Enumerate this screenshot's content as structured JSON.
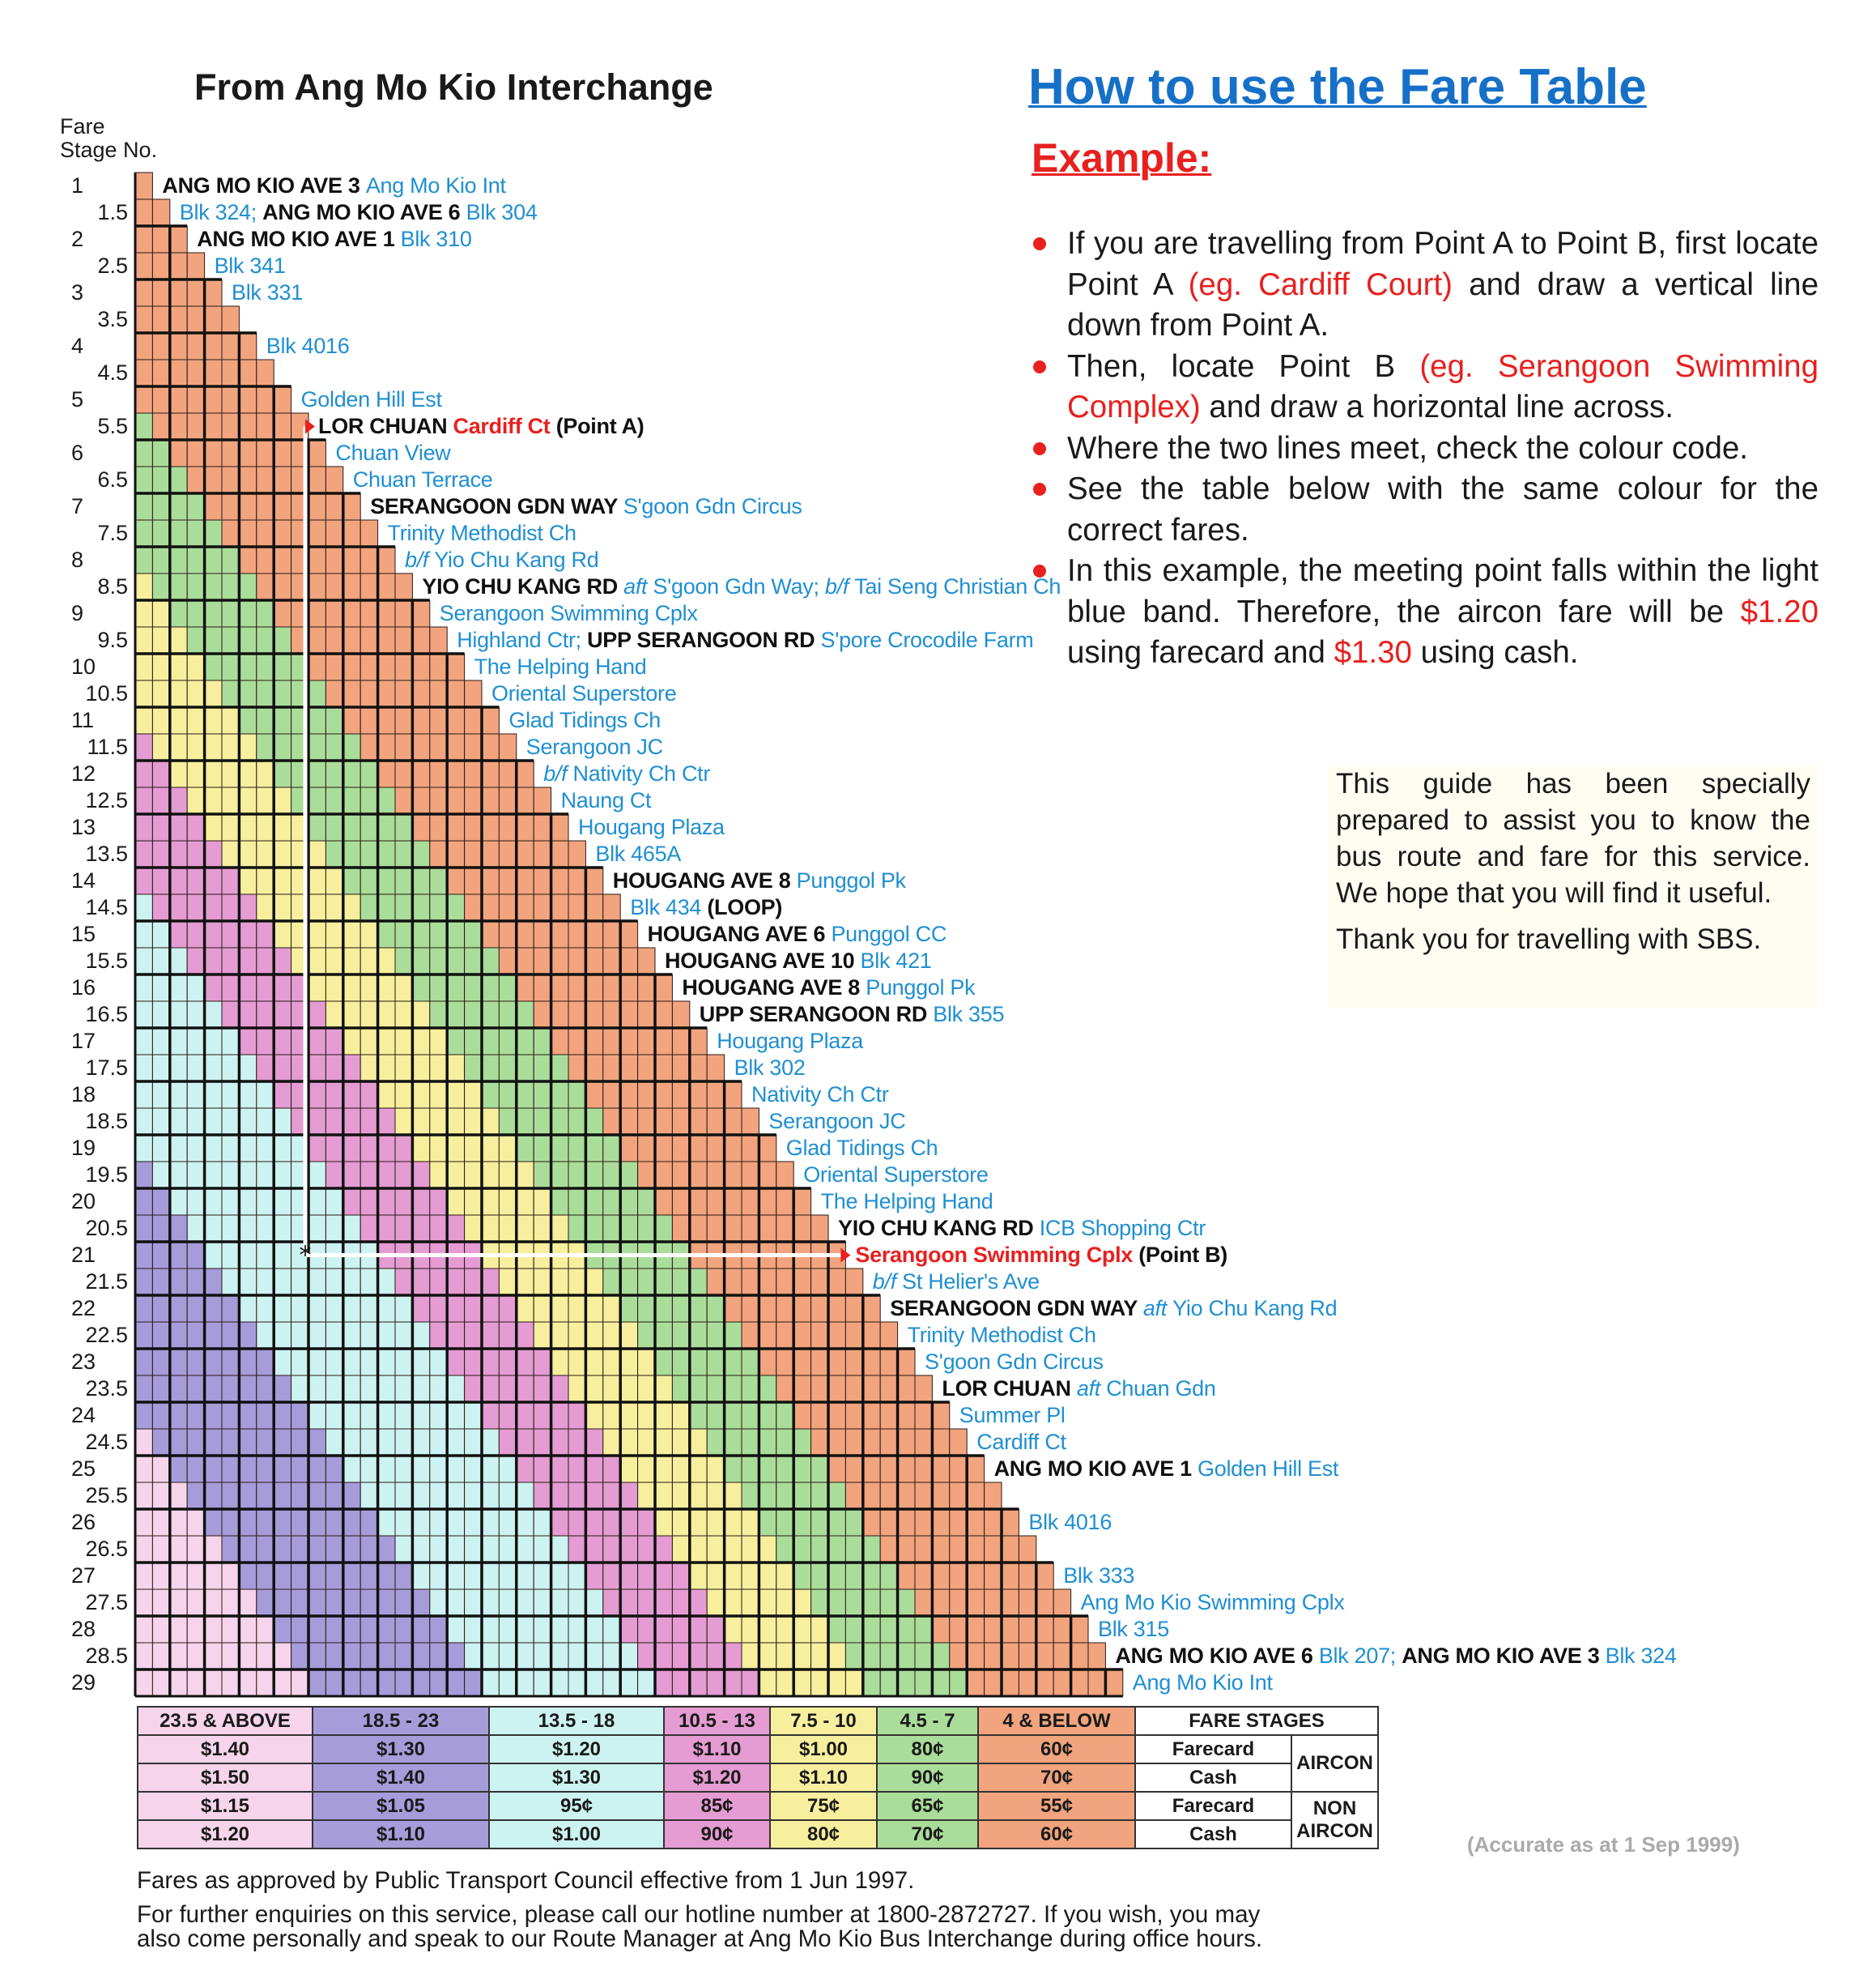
{
  "left_title": "From Ang Mo Kio Interchange",
  "stage_header": [
    "Fare",
    "Stage No."
  ],
  "colors": {
    "cyan_text": "#1f8fd2",
    "red_text": "#e8201e",
    "title_blue": "#1670c8"
  },
  "stops": [
    {
      "stage": "1",
      "parts": [
        [
          "b",
          "ANG MO KIO AVE 3 "
        ],
        [
          "c",
          "Ang Mo Kio Int"
        ]
      ]
    },
    {
      "stage": "1.5",
      "parts": [
        [
          "c",
          "Blk 324;  "
        ],
        [
          "b",
          "ANG MO KIO AVE 6 "
        ],
        [
          "c",
          "Blk 304"
        ]
      ]
    },
    {
      "stage": "2",
      "parts": [
        [
          "b",
          "ANG MO KIO AVE 1 "
        ],
        [
          "c",
          "Blk 310"
        ]
      ]
    },
    {
      "stage": "2.5",
      "parts": [
        [
          "c",
          "Blk 341"
        ]
      ]
    },
    {
      "stage": "3",
      "parts": [
        [
          "c",
          "Blk 331"
        ]
      ]
    },
    {
      "stage": "3.5",
      "parts": []
    },
    {
      "stage": "4",
      "parts": [
        [
          "c",
          "Blk 4016"
        ]
      ]
    },
    {
      "stage": "4.5",
      "parts": []
    },
    {
      "stage": "5",
      "parts": [
        [
          "c",
          "Golden Hill Est"
        ]
      ]
    },
    {
      "stage": "5.5",
      "parts": [
        [
          "b",
          "LOR CHUAN "
        ],
        [
          "r",
          "Cardiff Ct"
        ],
        [
          "b",
          " (Point A)"
        ]
      ]
    },
    {
      "stage": "6",
      "parts": [
        [
          "c",
          "Chuan View"
        ]
      ]
    },
    {
      "stage": "6.5",
      "parts": [
        [
          "c",
          "Chuan Terrace"
        ]
      ]
    },
    {
      "stage": "7",
      "parts": [
        [
          "b",
          "SERANGOON GDN WAY "
        ],
        [
          "c",
          "S'goon Gdn Circus"
        ]
      ]
    },
    {
      "stage": "7.5",
      "parts": [
        [
          "c",
          "Trinity Methodist Ch"
        ]
      ]
    },
    {
      "stage": "8",
      "parts": [
        [
          "i",
          "b/f "
        ],
        [
          "c",
          "Yio Chu Kang Rd"
        ]
      ]
    },
    {
      "stage": "8.5",
      "parts": [
        [
          "b",
          "YIO CHU KANG RD "
        ],
        [
          "i",
          "aft "
        ],
        [
          "c",
          "S'goon Gdn Way;  "
        ],
        [
          "i",
          "b/f "
        ],
        [
          "c",
          "Tai Seng Christian Ch"
        ]
      ]
    },
    {
      "stage": "9",
      "parts": [
        [
          "c",
          "Serangoon Swimming Cplx"
        ]
      ]
    },
    {
      "stage": "9.5",
      "parts": [
        [
          "c",
          "Highland Ctr;  "
        ],
        [
          "b",
          "UPP SERANGOON RD "
        ],
        [
          "c",
          "S'pore Crocodile Farm"
        ]
      ]
    },
    {
      "stage": "10",
      "parts": [
        [
          "c",
          "The Helping Hand"
        ]
      ]
    },
    {
      "stage": "10.5",
      "parts": [
        [
          "c",
          "Oriental Superstore"
        ]
      ]
    },
    {
      "stage": "11",
      "parts": [
        [
          "c",
          "Glad Tidings Ch"
        ]
      ]
    },
    {
      "stage": "11.5",
      "parts": [
        [
          "c",
          "Serangoon JC"
        ]
      ]
    },
    {
      "stage": "12",
      "parts": [
        [
          "i",
          "b/f "
        ],
        [
          "c",
          "Nativity Ch Ctr"
        ]
      ]
    },
    {
      "stage": "12.5",
      "parts": [
        [
          "c",
          "Naung Ct"
        ]
      ]
    },
    {
      "stage": "13",
      "parts": [
        [
          "c",
          "Hougang Plaza"
        ]
      ]
    },
    {
      "stage": "13.5",
      "parts": [
        [
          "c",
          "Blk 465A"
        ]
      ]
    },
    {
      "stage": "14",
      "parts": [
        [
          "b",
          "HOUGANG AVE 8 "
        ],
        [
          "c",
          "Punggol Pk"
        ]
      ]
    },
    {
      "stage": "14.5",
      "parts": [
        [
          "c",
          "Blk 434  "
        ],
        [
          "b",
          "(LOOP)"
        ]
      ]
    },
    {
      "stage": "15",
      "parts": [
        [
          "b",
          "HOUGANG AVE 6 "
        ],
        [
          "c",
          "Punggol CC"
        ]
      ]
    },
    {
      "stage": "15.5",
      "parts": [
        [
          "b",
          "HOUGANG AVE 10 "
        ],
        [
          "c",
          "Blk 421"
        ]
      ]
    },
    {
      "stage": "16",
      "parts": [
        [
          "b",
          "HOUGANG AVE 8 "
        ],
        [
          "c",
          "Punggol Pk"
        ]
      ]
    },
    {
      "stage": "16.5",
      "parts": [
        [
          "b",
          "UPP SERANGOON RD "
        ],
        [
          "c",
          "Blk 355"
        ]
      ]
    },
    {
      "stage": "17",
      "parts": [
        [
          "c",
          "Hougang Plaza"
        ]
      ]
    },
    {
      "stage": "17.5",
      "parts": [
        [
          "c",
          "Blk 302"
        ]
      ]
    },
    {
      "stage": "18",
      "parts": [
        [
          "c",
          "Nativity Ch Ctr"
        ]
      ]
    },
    {
      "stage": "18.5",
      "parts": [
        [
          "c",
          "Serangoon JC"
        ]
      ]
    },
    {
      "stage": "19",
      "parts": [
        [
          "c",
          "Glad Tidings Ch"
        ]
      ]
    },
    {
      "stage": "19.5",
      "parts": [
        [
          "c",
          "Oriental Superstore"
        ]
      ]
    },
    {
      "stage": "20",
      "parts": [
        [
          "c",
          "The Helping Hand"
        ]
      ]
    },
    {
      "stage": "20.5",
      "parts": [
        [
          "b",
          "YIO CHU KANG RD "
        ],
        [
          "c",
          "ICB Shopping Ctr"
        ]
      ]
    },
    {
      "stage": "21",
      "parts": [
        [
          "r",
          "Serangoon Swimming Cplx"
        ],
        [
          "b",
          " (Point B)"
        ]
      ]
    },
    {
      "stage": "21.5",
      "parts": [
        [
          "i",
          "b/f "
        ],
        [
          "c",
          "St Helier's Ave"
        ]
      ]
    },
    {
      "stage": "22",
      "parts": [
        [
          "b",
          "SERANGOON GDN WAY "
        ],
        [
          "i",
          "aft "
        ],
        [
          "c",
          "Yio Chu Kang Rd"
        ]
      ]
    },
    {
      "stage": "22.5",
      "parts": [
        [
          "c",
          "Trinity Methodist Ch"
        ]
      ]
    },
    {
      "stage": "23",
      "parts": [
        [
          "c",
          "S'goon Gdn Circus"
        ]
      ]
    },
    {
      "stage": "23.5",
      "parts": [
        [
          "b",
          "LOR CHUAN "
        ],
        [
          "i",
          "aft "
        ],
        [
          "c",
          "Chuan Gdn"
        ]
      ]
    },
    {
      "stage": "24",
      "parts": [
        [
          "c",
          "Summer Pl"
        ]
      ]
    },
    {
      "stage": "24.5",
      "parts": [
        [
          "c",
          "Cardiff Ct"
        ]
      ]
    },
    {
      "stage": "25",
      "parts": [
        [
          "b",
          "ANG MO KIO AVE 1 "
        ],
        [
          "c",
          "Golden Hill Est"
        ]
      ]
    },
    {
      "stage": "25.5",
      "parts": []
    },
    {
      "stage": "26",
      "parts": [
        [
          "c",
          "Blk 4016"
        ]
      ]
    },
    {
      "stage": "26.5",
      "parts": []
    },
    {
      "stage": "27",
      "parts": [
        [
          "c",
          "Blk 333"
        ]
      ]
    },
    {
      "stage": "27.5",
      "parts": [
        [
          "c",
          "Ang Mo Kio Swimming Cplx"
        ]
      ]
    },
    {
      "stage": "28",
      "parts": [
        [
          "c",
          "Blk 315"
        ]
      ]
    },
    {
      "stage": "28.5",
      "parts": [
        [
          "b",
          "ANG MO KIO AVE 6 "
        ],
        [
          "c",
          "Blk 207;  "
        ],
        [
          "b",
          "ANG MO KIO AVE 3 "
        ],
        [
          "c",
          "Blk 324"
        ]
      ]
    },
    {
      "stage": "29",
      "parts": [
        [
          "c",
          "Ang Mo Kio Int"
        ]
      ]
    }
  ],
  "example_path": {
    "point_a_stage": "5.5",
    "point_b_stage": "21"
  },
  "fare_bands": [
    {
      "range": "23.5 & ABOVE",
      "max_stages": 99,
      "color": "#f6d4ec",
      "fares": [
        "$1.40",
        "$1.50",
        "$1.15",
        "$1.20"
      ]
    },
    {
      "range": "18.5 - 23",
      "max_stages": 23,
      "color": "#a69cda",
      "fares": [
        "$1.30",
        "$1.40",
        "$1.05",
        "$1.10"
      ]
    },
    {
      "range": "13.5 - 18",
      "max_stages": 18,
      "color": "#cdf2f2",
      "fares": [
        "$1.20",
        "$1.30",
        "95¢",
        "$1.00"
      ]
    },
    {
      "range": "10.5 - 13",
      "max_stages": 13,
      "color": "#e49cd2",
      "fares": [
        "$1.10",
        "$1.20",
        "85¢",
        "90¢"
      ]
    },
    {
      "range": "7.5 - 10",
      "max_stages": 10,
      "color": "#f7ef9e",
      "fares": [
        "$1.00",
        "$1.10",
        "75¢",
        "80¢"
      ]
    },
    {
      "range": "4.5 - 7",
      "max_stages": 7,
      "color": "#aadd9a",
      "fares": [
        "80¢",
        "90¢",
        "65¢",
        "70¢"
      ]
    },
    {
      "range": "4 & BELOW",
      "max_stages": 4,
      "color": "#f1a47e",
      "fares": [
        "60¢",
        "70¢",
        "55¢",
        "60¢"
      ]
    }
  ],
  "fare_table_labels": {
    "header": "FARE STAGES",
    "farecard": "Farecard",
    "cash": "Cash",
    "aircon": "AIRCON",
    "non_aircon": "NON AIRCON"
  },
  "how_to": {
    "title": "How to use the Fare Table",
    "example": "Example:",
    "bullets": [
      [
        [
          "n",
          "If you are travelling from Point A to Point B, first locate Point A "
        ],
        [
          "r",
          "(eg. Cardiff Court)"
        ],
        [
          "n",
          " and draw a vertical line down from Point A."
        ]
      ],
      [
        [
          "n",
          "Then, locate Point B "
        ],
        [
          "r",
          "(eg. Serangoon Swimming Complex)"
        ],
        [
          "n",
          " and draw a horizontal line across."
        ]
      ],
      [
        [
          "n",
          "Where the two lines meet, check the colour code."
        ]
      ],
      [
        [
          "n",
          "See the table below with the same colour for the correct fares."
        ]
      ],
      [
        [
          "n",
          "In this example, the meeting point falls within the light blue band.  Therefore, the aircon fare will be "
        ],
        [
          "r",
          "$1.20"
        ],
        [
          "n",
          " using farecard and "
        ],
        [
          "r",
          "$1.30"
        ],
        [
          "n",
          " using cash."
        ]
      ]
    ]
  },
  "guide": {
    "text": "This guide has been specially prepared to assist you to know the bus route and fare for this service. We hope that you will find it useful.",
    "thanks": "Thank you for travelling with SBS."
  },
  "accurate": "(Accurate as at 1 Sep 1999)",
  "footer": [
    "Fares as approved by Public Transport Council effective from 1 Jun 1997.",
    "For further enquiries on this service, please call our hotline number at 1800-2872727.  If you wish, you may",
    "also come personally and speak to our Route Manager at Ang Mo Kio Bus Interchange during office hours."
  ]
}
